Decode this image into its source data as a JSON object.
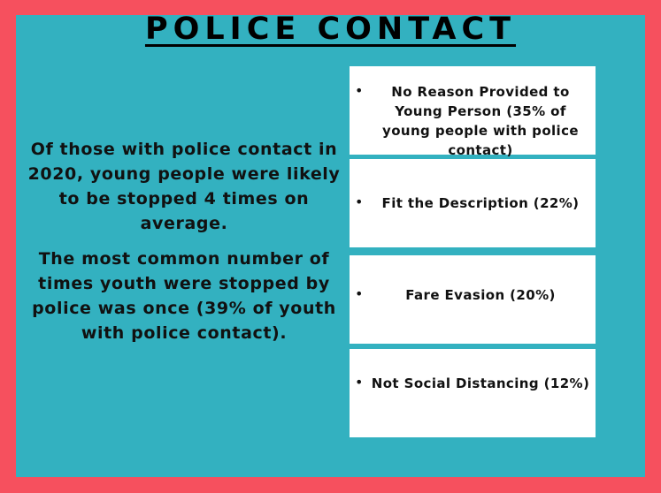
{
  "title": "POLICE CONTACT",
  "left": {
    "paragraph_1": "Of those with police contact in 2020, young people were likely to be stopped 4 times on average.",
    "paragraph_2": "The most common number of times youth were stopped by police was once (39% of youth with police contact)."
  },
  "reasons": [
    {
      "bullet": "•",
      "text": "No Reason Provided to Young Person (35% of young people with police contact)"
    },
    {
      "bullet": "•",
      "text": "Fit the Description (22%)"
    },
    {
      "bullet": "•",
      "text": "Fare Evasion (20%)"
    },
    {
      "bullet": "•",
      "text": "Not Social Distancing (12%)"
    }
  ],
  "colors": {
    "border": "#f6505e",
    "panel": "#33b1c0",
    "card": "#ffffff"
  }
}
